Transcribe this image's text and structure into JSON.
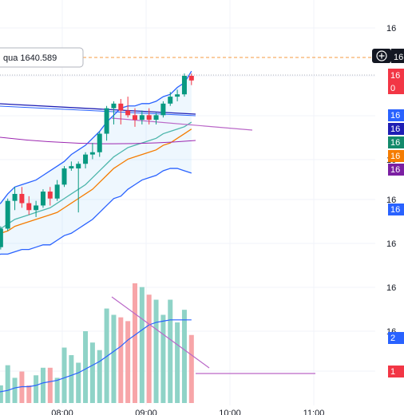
{
  "chart_data": {
    "type": "candlestick",
    "time_labels": [
      "08:00",
      "09:00",
      "10:00",
      "11:00"
    ],
    "price_ticks": [
      "16",
      "16",
      "16",
      "16",
      "16",
      "16"
    ],
    "alert": {
      "label": "qua 1640.589",
      "price": 1640.589,
      "line_color": "#f59b42"
    },
    "price_tags": [
      {
        "text": "16",
        "color": "#131722"
      },
      {
        "text": "16",
        "color": "#f23645"
      },
      {
        "text": "0",
        "color": "#f23645"
      },
      {
        "text": "16",
        "color": "#2962ff"
      },
      {
        "text": "16",
        "color": "#1e1eb4"
      },
      {
        "text": "16",
        "color": "#138a6b"
      },
      {
        "text": "16",
        "color": "#f57c00"
      },
      {
        "text": "16",
        "color": "#7b1fa2"
      },
      {
        "text": "16",
        "color": "#2962ff"
      },
      {
        "text": "2",
        "color": "#2962ff"
      },
      {
        "text": "1",
        "color": "#f23645"
      }
    ],
    "candles": [
      {
        "o": 1566,
        "h": 1569,
        "l": 1563,
        "c": 1567
      },
      {
        "o": 1567,
        "h": 1576,
        "l": 1566,
        "c": 1575
      },
      {
        "o": 1575,
        "h": 1588,
        "l": 1574,
        "c": 1587
      },
      {
        "o": 1587,
        "h": 1593,
        "l": 1583,
        "c": 1590
      },
      {
        "o": 1590,
        "h": 1593,
        "l": 1584,
        "c": 1586
      },
      {
        "o": 1586,
        "h": 1589,
        "l": 1581,
        "c": 1583
      },
      {
        "o": 1583,
        "h": 1587,
        "l": 1580,
        "c": 1585
      },
      {
        "o": 1585,
        "h": 1592,
        "l": 1584,
        "c": 1591
      },
      {
        "o": 1591,
        "h": 1593,
        "l": 1585,
        "c": 1588
      },
      {
        "o": 1588,
        "h": 1596,
        "l": 1587,
        "c": 1594
      },
      {
        "o": 1594,
        "h": 1602,
        "l": 1593,
        "c": 1601
      },
      {
        "o": 1601,
        "h": 1604,
        "l": 1600,
        "c": 1602
      },
      {
        "o": 1601,
        "h": 1604,
        "l": 1582,
        "c": 1603
      },
      {
        "o": 1603,
        "h": 1608,
        "l": 1601,
        "c": 1607
      },
      {
        "o": 1607,
        "h": 1612,
        "l": 1605,
        "c": 1608
      },
      {
        "o": 1608,
        "h": 1617,
        "l": 1606,
        "c": 1616
      },
      {
        "o": 1616,
        "h": 1628,
        "l": 1613,
        "c": 1627
      },
      {
        "o": 1627,
        "h": 1630,
        "l": 1620,
        "c": 1629
      },
      {
        "o": 1629,
        "h": 1631,
        "l": 1620,
        "c": 1626
      },
      {
        "o": 1626,
        "h": 1632,
        "l": 1623,
        "c": 1624
      },
      {
        "o": 1624,
        "h": 1627,
        "l": 1619,
        "c": 1622
      },
      {
        "o": 1622,
        "h": 1626,
        "l": 1620,
        "c": 1624
      },
      {
        "o": 1624,
        "h": 1627,
        "l": 1620,
        "c": 1622
      },
      {
        "o": 1622,
        "h": 1625,
        "l": 1620,
        "c": 1624
      },
      {
        "o": 1624,
        "h": 1630,
        "l": 1623,
        "c": 1629
      },
      {
        "o": 1629,
        "h": 1634,
        "l": 1628,
        "c": 1632
      },
      {
        "o": 1632,
        "h": 1635,
        "l": 1630,
        "c": 1633
      },
      {
        "o": 1633,
        "h": 1642,
        "l": 1632,
        "c": 1641
      },
      {
        "o": 1641,
        "h": 1642,
        "l": 1637,
        "c": 1639
      }
    ],
    "volume": [
      6,
      14,
      30,
      20,
      25,
      14,
      22,
      28,
      28,
      20,
      44,
      38,
      32,
      57,
      48,
      42,
      75,
      70,
      68,
      65,
      95,
      92,
      86,
      82,
      70,
      82,
      64,
      74,
      54
    ],
    "bollinger": {
      "upper": [
        1584,
        1586,
        1590,
        1593,
        1594,
        1595,
        1596,
        1598,
        1600,
        1602,
        1604,
        1607,
        1609,
        1611,
        1614,
        1617,
        1621,
        1624,
        1627,
        1628,
        1628,
        1629,
        1629,
        1630,
        1632,
        1633,
        1636,
        1638,
        1643
      ],
      "basis": [
        1574,
        1575,
        1577,
        1579,
        1580,
        1581,
        1582,
        1583,
        1584,
        1586,
        1588,
        1590,
        1592,
        1594,
        1597,
        1600,
        1603,
        1606,
        1608,
        1610,
        1611,
        1612,
        1613,
        1614,
        1616,
        1617,
        1618,
        1619,
        1621
      ],
      "lower": [
        1563,
        1564,
        1564,
        1565,
        1566,
        1566,
        1567,
        1568,
        1568,
        1570,
        1572,
        1573,
        1575,
        1577,
        1579,
        1582,
        1585,
        1588,
        1589,
        1592,
        1594,
        1596,
        1597,
        1598,
        1600,
        1601,
        1601,
        1600,
        1599
      ]
    },
    "ma_fast": [
      1572,
      1573,
      1574,
      1576,
      1577,
      1578,
      1579,
      1580,
      1581,
      1582,
      1584,
      1586,
      1588,
      1590,
      1592,
      1595,
      1598,
      1601,
      1603,
      1605,
      1606,
      1607,
      1608,
      1609,
      1611,
      1612,
      1614,
      1616,
      1618
    ],
    "volume_ma": [
      8,
      9,
      10,
      12,
      13,
      13,
      14,
      16,
      17,
      18,
      20,
      22,
      24,
      27,
      30,
      33,
      37,
      41,
      45,
      50,
      54,
      58,
      62,
      64,
      65,
      66,
      66,
      66,
      66
    ]
  }
}
